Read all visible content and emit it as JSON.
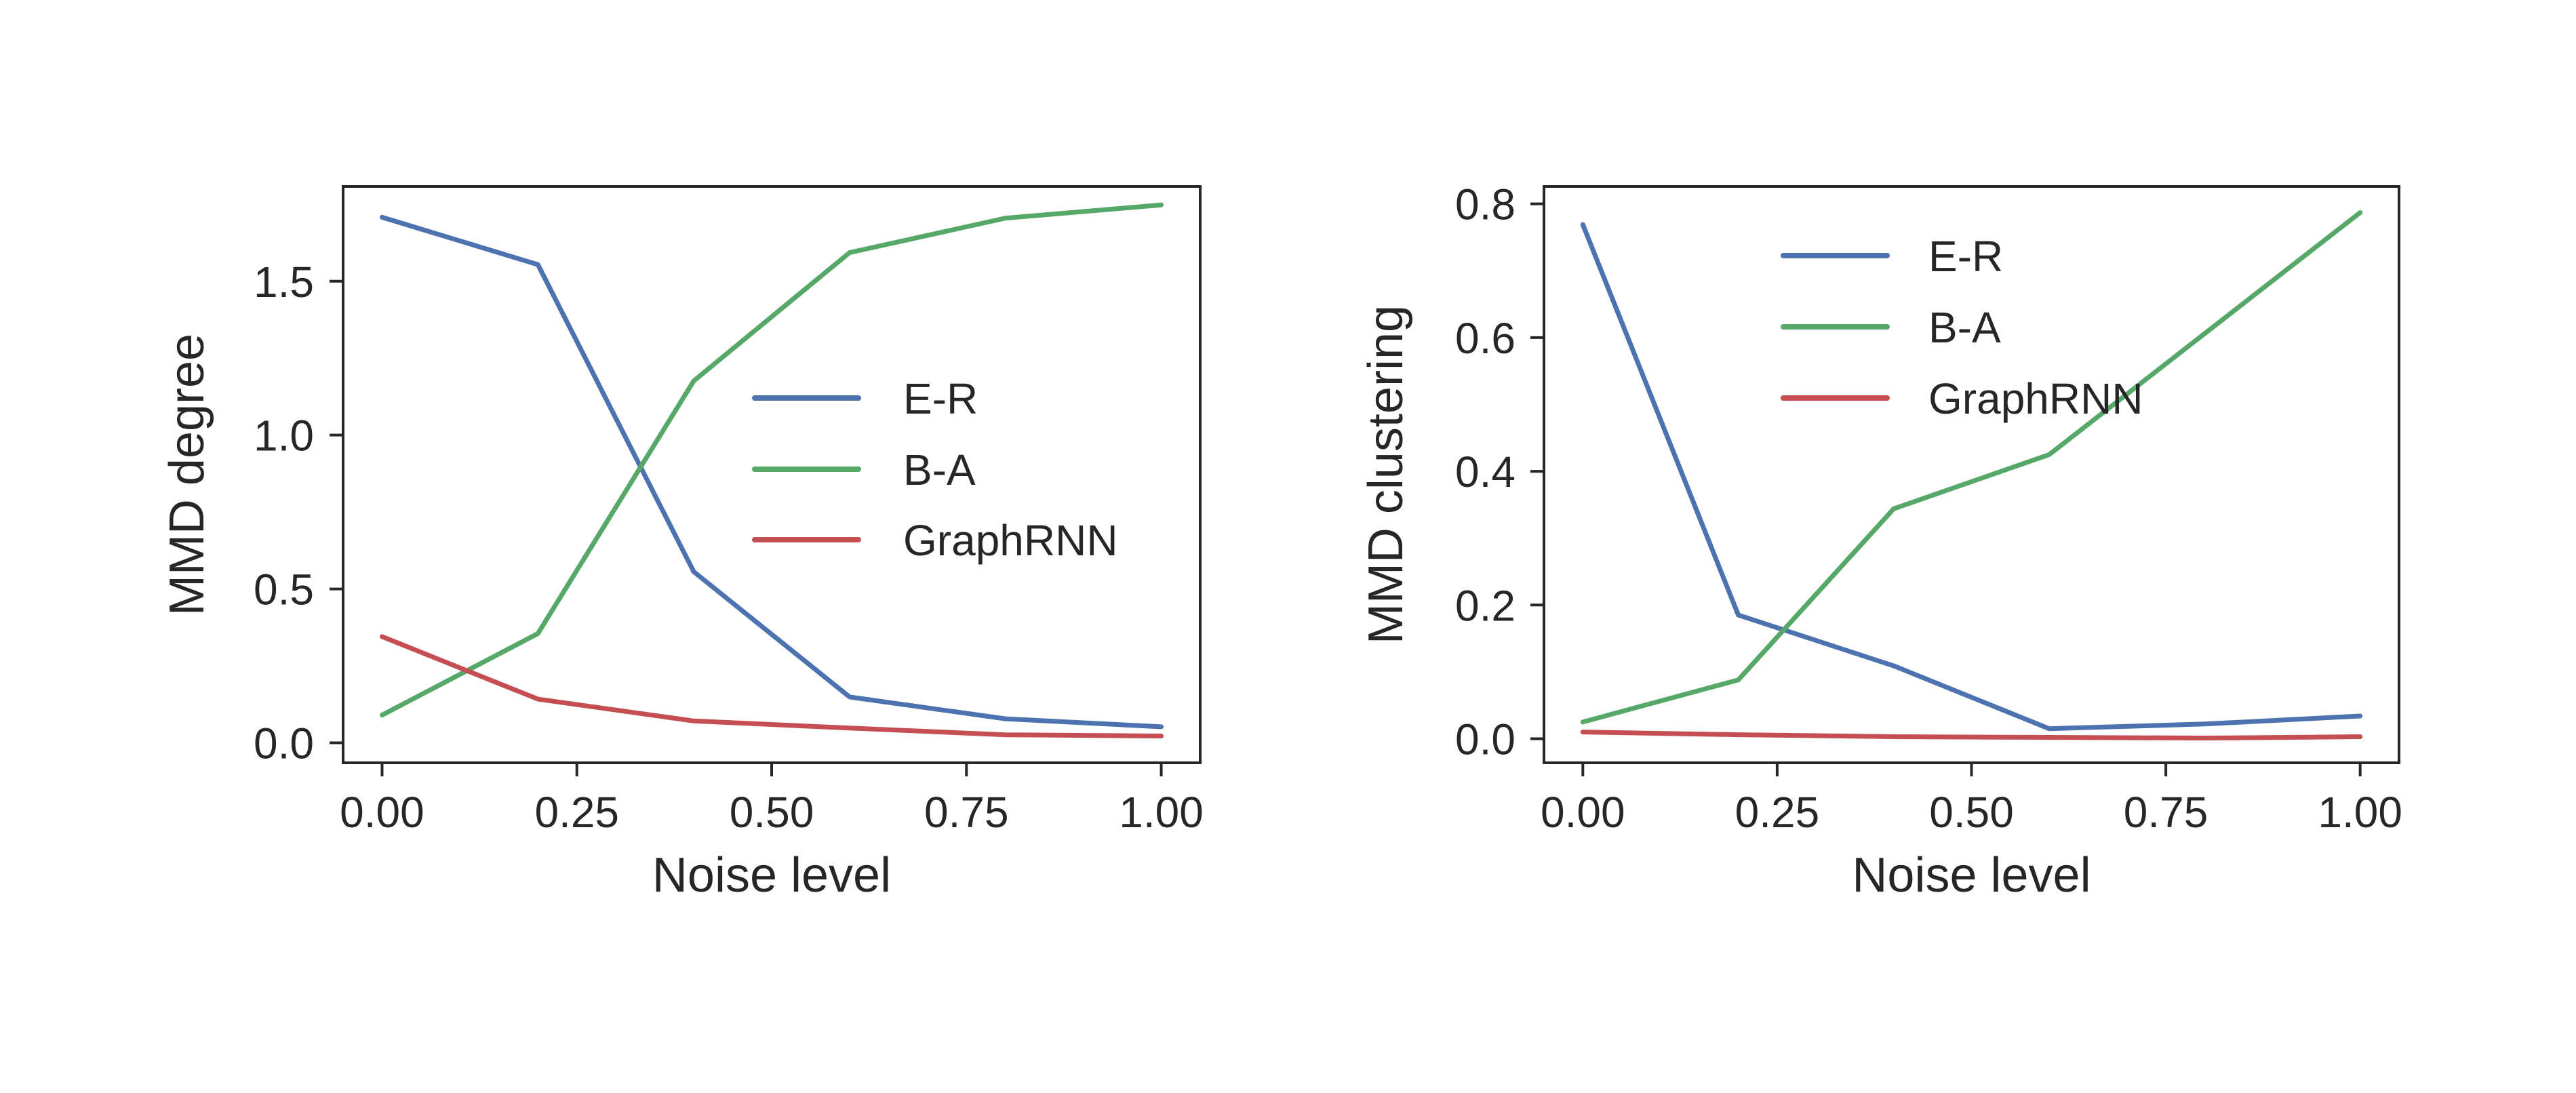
{
  "chart_data": [
    {
      "type": "line",
      "xlabel": "Noise level",
      "ylabel": "MMD degree",
      "x": [
        0.0,
        0.2,
        0.4,
        0.6,
        0.8,
        1.0
      ],
      "xlim": [
        -0.05,
        1.05
      ],
      "ylim": [
        -0.065,
        1.808
      ],
      "xticks": [
        "0.00",
        "0.25",
        "0.50",
        "0.75",
        "1.00"
      ],
      "yticks": [
        "0.0",
        "0.5",
        "1.0",
        "1.5"
      ],
      "grid": false,
      "legend": "center-right",
      "series": [
        {
          "name": "E-R",
          "color": "#4C72B0",
          "values": [
            1.708,
            1.554,
            0.556,
            0.149,
            0.078,
            0.052
          ]
        },
        {
          "name": "B-A",
          "color": "#55A868",
          "values": [
            0.09,
            0.355,
            1.176,
            1.593,
            1.705,
            1.748
          ]
        },
        {
          "name": "GraphRNN",
          "color": "#C44E52",
          "values": [
            0.345,
            0.142,
            0.071,
            0.048,
            0.026,
            0.022
          ]
        }
      ]
    },
    {
      "type": "line",
      "xlabel": "Noise level",
      "ylabel": "MMD clustering",
      "x": [
        0.0,
        0.2,
        0.4,
        0.6,
        0.8,
        1.0
      ],
      "xlim": [
        -0.05,
        1.05
      ],
      "ylim": [
        -0.036,
        0.826
      ],
      "xticks": [
        "0.00",
        "0.25",
        "0.50",
        "0.75",
        "1.00"
      ],
      "yticks": [
        "0.0",
        "0.2",
        "0.4",
        "0.6",
        "0.8"
      ],
      "grid": false,
      "legend": "upper-center",
      "series": [
        {
          "name": "E-R",
          "color": "#4C72B0",
          "values": [
            0.769,
            0.185,
            0.109,
            0.015,
            0.022,
            0.034
          ]
        },
        {
          "name": "B-A",
          "color": "#55A868",
          "values": [
            0.025,
            0.088,
            0.344,
            0.425,
            0.606,
            0.787
          ]
        },
        {
          "name": "GraphRNN",
          "color": "#C44E52",
          "values": [
            0.01,
            0.006,
            0.003,
            0.002,
            0.001,
            0.003
          ]
        }
      ]
    }
  ]
}
